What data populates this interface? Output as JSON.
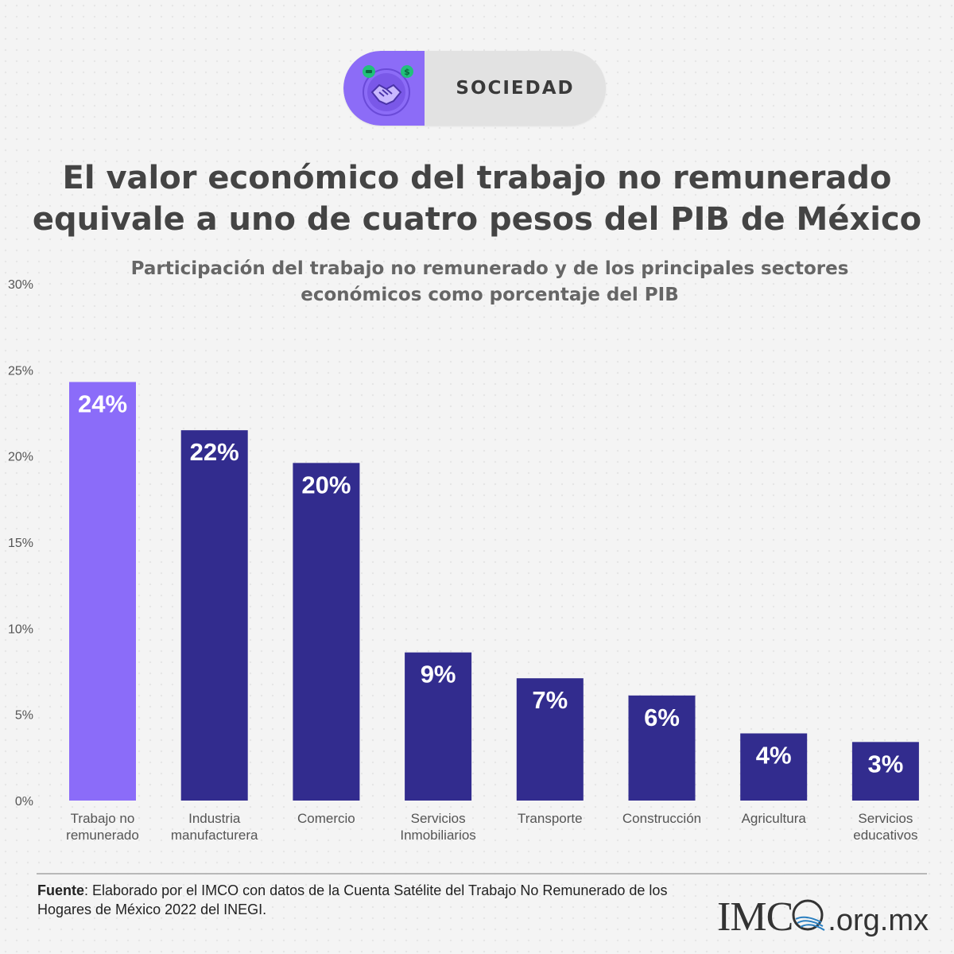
{
  "badge": {
    "label": "SOCIEDAD",
    "icon": "handshake-coins-icon"
  },
  "title_line1": "El valor económico del trabajo no remunerado",
  "title_line2": "equivale a uno de cuatro pesos del PIB de México",
  "chart_data": {
    "type": "bar",
    "title": "",
    "subtitle_line1": "Participación del trabajo no remunerado y de los principales sectores",
    "subtitle_line2": "económicos como porcentaje del PIB",
    "categories": [
      [
        "Trabajo no",
        "remunerado"
      ],
      [
        "Industria",
        "manufacturera"
      ],
      [
        "Comercio"
      ],
      [
        "Servicios",
        "Inmobiliarios"
      ],
      [
        "Transporte"
      ],
      [
        "Construcción"
      ],
      [
        "Agricultura"
      ],
      [
        "Servicios",
        "educativos"
      ]
    ],
    "values": [
      24.3,
      21.5,
      19.6,
      8.6,
      7.1,
      6.1,
      3.9,
      3.4
    ],
    "data_labels": [
      "24%",
      "22%",
      "20%",
      "9%",
      "7%",
      "6%",
      "4%",
      "3%"
    ],
    "highlight_index": 0,
    "y_ticks": [
      "0%",
      "5%",
      "10%",
      "15%",
      "20%",
      "25%",
      "30%"
    ],
    "ylim": [
      0,
      30
    ],
    "xlabel": "",
    "ylabel": "",
    "grid": false,
    "colors": {
      "highlight": "#8b6cf9",
      "default": "#322c8e",
      "label": "#ffffff",
      "tick": "#555555"
    }
  },
  "footer": {
    "source_label": "Fuente",
    "source_text": ": Elaborado por el IMCO con datos de la Cuenta Satélite del Trabajo No Remunerado de los Hogares de México 2022 del INEGI.",
    "logo_text": "IMC",
    "logo_domain": ".org.mx"
  }
}
